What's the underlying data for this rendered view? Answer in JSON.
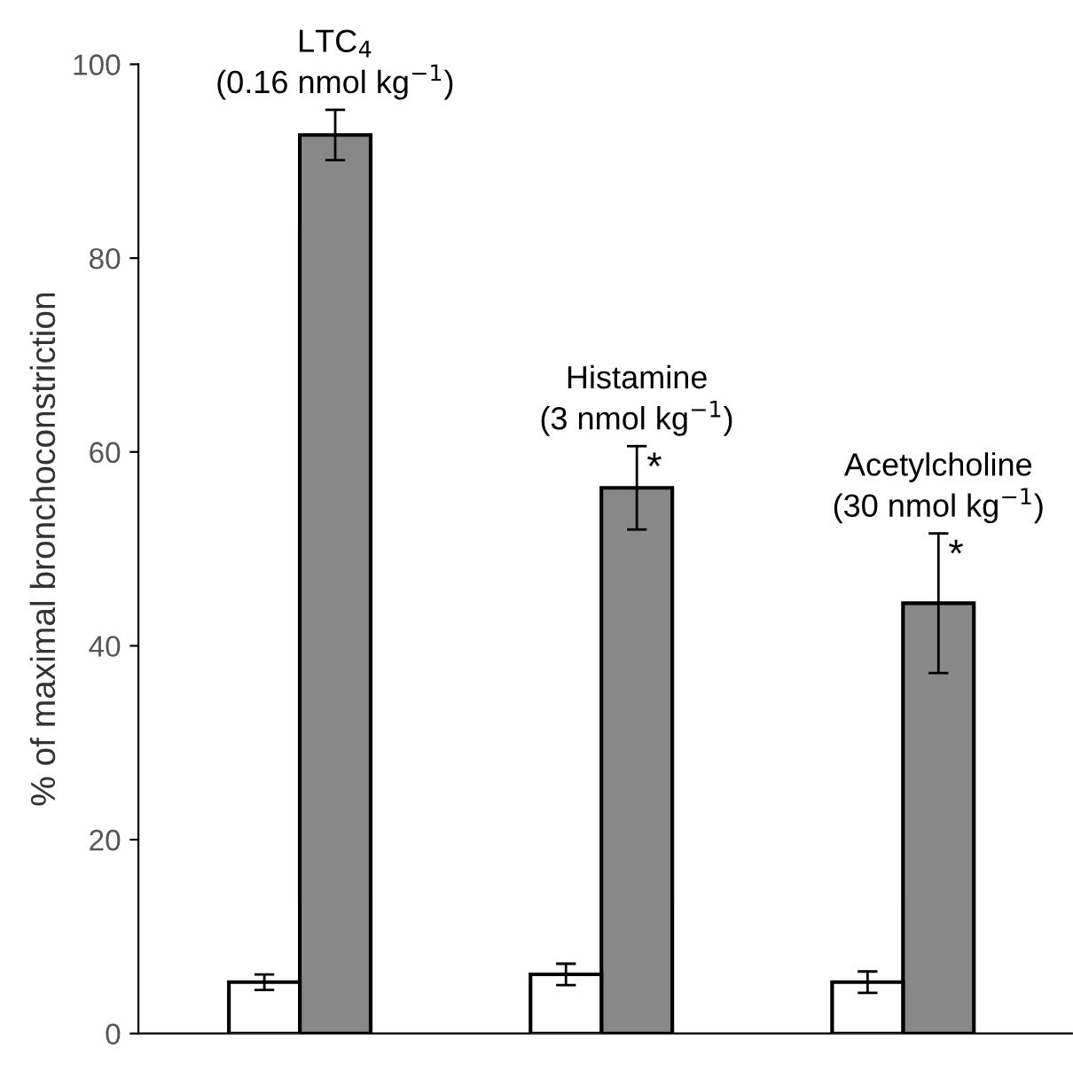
{
  "chart_data": {
    "type": "bar",
    "ylabel": "% of maximal bronchoconstriction",
    "categories": [
      null,
      null,
      null
    ],
    "series": [
      {
        "color": "#ffffff",
        "values": [
          5.3,
          6.1,
          5.3
        ],
        "errors": [
          0.8,
          1.1,
          1.1
        ]
      },
      {
        "color": "#888888",
        "values": [
          92.7,
          56.3,
          44.4
        ],
        "errors": [
          2.6,
          4.3,
          7.2
        ]
      }
    ],
    "ylim": [
      0,
      100
    ],
    "yticks": [
      0,
      20,
      40,
      60,
      80,
      100
    ],
    "grid": false,
    "legend": false,
    "annotations": [
      "LTC$_{4}$\n(0.16 nmol kg$^{−1}$)",
      "Histamine\n(3 nmol kg$^{−1}$)",
      "Acetylcholine\n(30 nmol kg$^{−1}$)",
      "*",
      "*"
    ]
  }
}
